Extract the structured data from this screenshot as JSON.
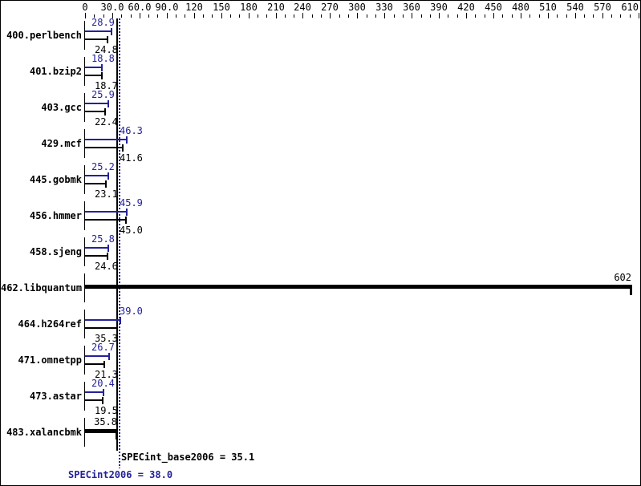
{
  "chart_data": {
    "type": "bar",
    "orientation": "horizontal",
    "title": "",
    "xlabel": "",
    "ylabel": "",
    "grid": false,
    "colors": {
      "peak": "#22229a",
      "base": "#000000",
      "background": "#ffffff",
      "border": "#000000"
    },
    "axis": {
      "min": 0,
      "max": 610,
      "minor_step": 10,
      "ticks": [
        {
          "v": 0,
          "label": "0"
        },
        {
          "v": 30,
          "label": "30.0"
        },
        {
          "v": 60,
          "label": "60.0"
        },
        {
          "v": 90,
          "label": "90.0"
        },
        {
          "v": 120,
          "label": "120"
        },
        {
          "v": 150,
          "label": "150"
        },
        {
          "v": 180,
          "label": "180"
        },
        {
          "v": 210,
          "label": "210"
        },
        {
          "v": 240,
          "label": "240"
        },
        {
          "v": 270,
          "label": "270"
        },
        {
          "v": 300,
          "label": "300"
        },
        {
          "v": 330,
          "label": "330"
        },
        {
          "v": 360,
          "label": "360"
        },
        {
          "v": 390,
          "label": "390"
        },
        {
          "v": 420,
          "label": "420"
        },
        {
          "v": 450,
          "label": "450"
        },
        {
          "v": 480,
          "label": "480"
        },
        {
          "v": 510,
          "label": "510"
        },
        {
          "v": 540,
          "label": "540"
        },
        {
          "v": 570,
          "label": "570"
        },
        {
          "v": 610,
          "label": "610"
        }
      ]
    },
    "series_meaning": {
      "peak_color_series": "SPECint2006 (peak, blue)",
      "base_color_series": "SPECint_base2006 (base, black)"
    },
    "benchmarks": [
      {
        "name": "400.perlbench",
        "style": "pair",
        "peak": 28.9,
        "peak_label": "28.9",
        "base": 24.8,
        "base_label": "24.8"
      },
      {
        "name": "401.bzip2",
        "style": "pair",
        "peak": 18.8,
        "peak_label": "18.8",
        "base": 18.7,
        "base_label": "18.7"
      },
      {
        "name": "403.gcc",
        "style": "pair",
        "peak": 25.9,
        "peak_label": "25.9",
        "base": 22.4,
        "base_label": "22.4"
      },
      {
        "name": "429.mcf",
        "style": "pair",
        "peak": 46.3,
        "peak_label": "46.3",
        "base": 41.6,
        "base_label": "41.6"
      },
      {
        "name": "445.gobmk",
        "style": "pair",
        "peak": 25.2,
        "peak_label": "25.2",
        "base": 23.1,
        "base_label": "23.1"
      },
      {
        "name": "456.hmmer",
        "style": "pair",
        "peak": 45.9,
        "peak_label": "45.9",
        "base": 45.0,
        "base_label": "45.0"
      },
      {
        "name": "458.sjeng",
        "style": "pair",
        "peak": 25.8,
        "peak_label": "25.8",
        "base": 24.6,
        "base_label": "24.6"
      },
      {
        "name": "462.libquantum",
        "style": "single",
        "value": 602,
        "value_label": "602"
      },
      {
        "name": "464.h264ref",
        "style": "pair",
        "peak": 39.0,
        "peak_label": "39.0",
        "base": 35.3,
        "base_label": "35.3"
      },
      {
        "name": "471.omnetpp",
        "style": "pair",
        "peak": 26.7,
        "peak_label": "26.7",
        "base": 21.3,
        "base_label": "21.3"
      },
      {
        "name": "473.astar",
        "style": "pair",
        "peak": 20.4,
        "peak_label": "20.4",
        "base": 19.5,
        "base_label": "19.5"
      },
      {
        "name": "483.xalancbmk",
        "style": "single",
        "value": 35.8,
        "value_label": "35.8"
      }
    ],
    "means": {
      "base_value": 35.1,
      "base_label": "SPECint_base2006 = 35.1",
      "peak_value": 38.0,
      "peak_label": "SPECint2006 = 38.0"
    }
  }
}
